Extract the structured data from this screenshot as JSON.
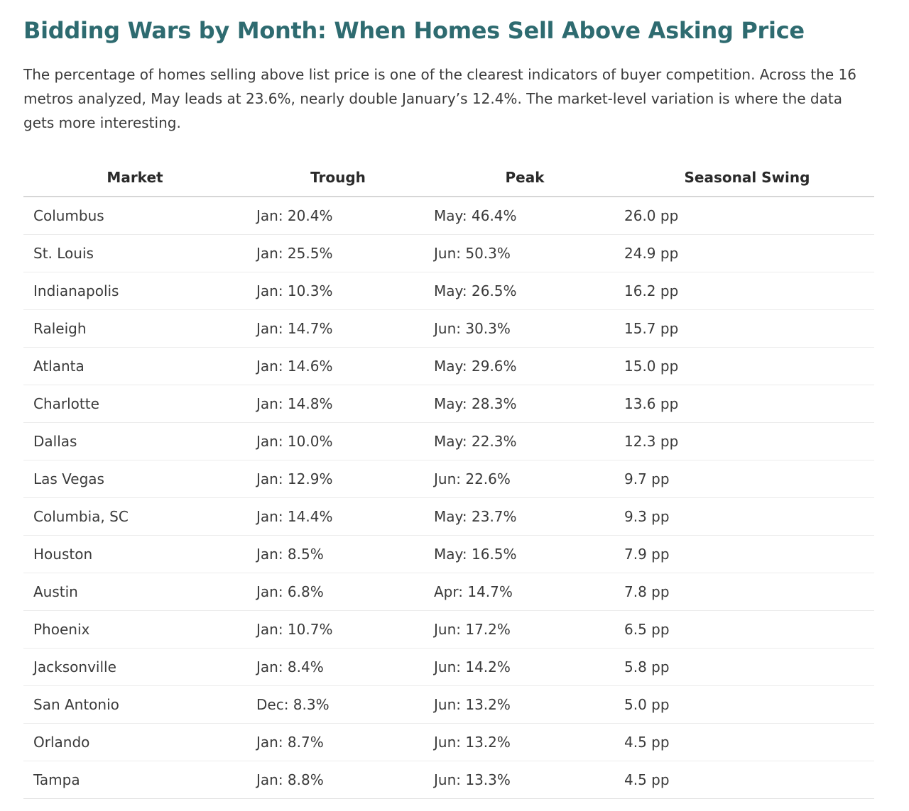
{
  "article": {
    "title": "Bidding Wars by Month: When Homes Sell Above Asking Price",
    "intro": "The percentage of homes selling above list price is one of the clearest indicators of buyer competition. Across the 16 metros analyzed, May leads at 23.6%, nearly double January’s 12.4%. The market-level variation is where the data gets more interesting."
  },
  "table": {
    "headers": {
      "market": "Market",
      "trough": "Trough",
      "peak": "Peak",
      "swing": "Seasonal Swing"
    },
    "rows": [
      {
        "market": "Columbus",
        "trough": "Jan: 20.4%",
        "peak": "May: 46.4%",
        "swing": "26.0 pp"
      },
      {
        "market": "St. Louis",
        "trough": "Jan: 25.5%",
        "peak": "Jun: 50.3%",
        "swing": "24.9 pp"
      },
      {
        "market": "Indianapolis",
        "trough": "Jan: 10.3%",
        "peak": "May: 26.5%",
        "swing": "16.2 pp"
      },
      {
        "market": "Raleigh",
        "trough": "Jan: 14.7%",
        "peak": "Jun: 30.3%",
        "swing": "15.7 pp"
      },
      {
        "market": "Atlanta",
        "trough": "Jan: 14.6%",
        "peak": "May: 29.6%",
        "swing": "15.0 pp"
      },
      {
        "market": "Charlotte",
        "trough": "Jan: 14.8%",
        "peak": "May: 28.3%",
        "swing": "13.6 pp"
      },
      {
        "market": "Dallas",
        "trough": "Jan: 10.0%",
        "peak": "May: 22.3%",
        "swing": "12.3 pp"
      },
      {
        "market": "Las Vegas",
        "trough": "Jan: 12.9%",
        "peak": "Jun: 22.6%",
        "swing": "9.7 pp"
      },
      {
        "market": "Columbia, SC",
        "trough": "Jan: 14.4%",
        "peak": "May: 23.7%",
        "swing": "9.3 pp"
      },
      {
        "market": "Houston",
        "trough": "Jan: 8.5%",
        "peak": "May: 16.5%",
        "swing": "7.9 pp"
      },
      {
        "market": "Austin",
        "trough": "Jan: 6.8%",
        "peak": "Apr: 14.7%",
        "swing": "7.8 pp"
      },
      {
        "market": "Phoenix",
        "trough": "Jan: 10.7%",
        "peak": "Jun: 17.2%",
        "swing": "6.5 pp"
      },
      {
        "market": "Jacksonville",
        "trough": "Jan: 8.4%",
        "peak": "Jun: 14.2%",
        "swing": "5.8 pp"
      },
      {
        "market": "San Antonio",
        "trough": "Dec: 8.3%",
        "peak": "Jun: 13.2%",
        "swing": "5.0 pp"
      },
      {
        "market": "Orlando",
        "trough": "Jan: 8.7%",
        "peak": "Jun: 13.2%",
        "swing": "4.5 pp"
      },
      {
        "market": "Tampa",
        "trough": "Jan: 8.8%",
        "peak": "Jun: 13.3%",
        "swing": "4.5 pp"
      }
    ]
  },
  "colors": {
    "title": "#2e6b70",
    "text": "#3a3a3a",
    "header_rule": "#d6d6d6",
    "row_rule": "#ececec"
  }
}
